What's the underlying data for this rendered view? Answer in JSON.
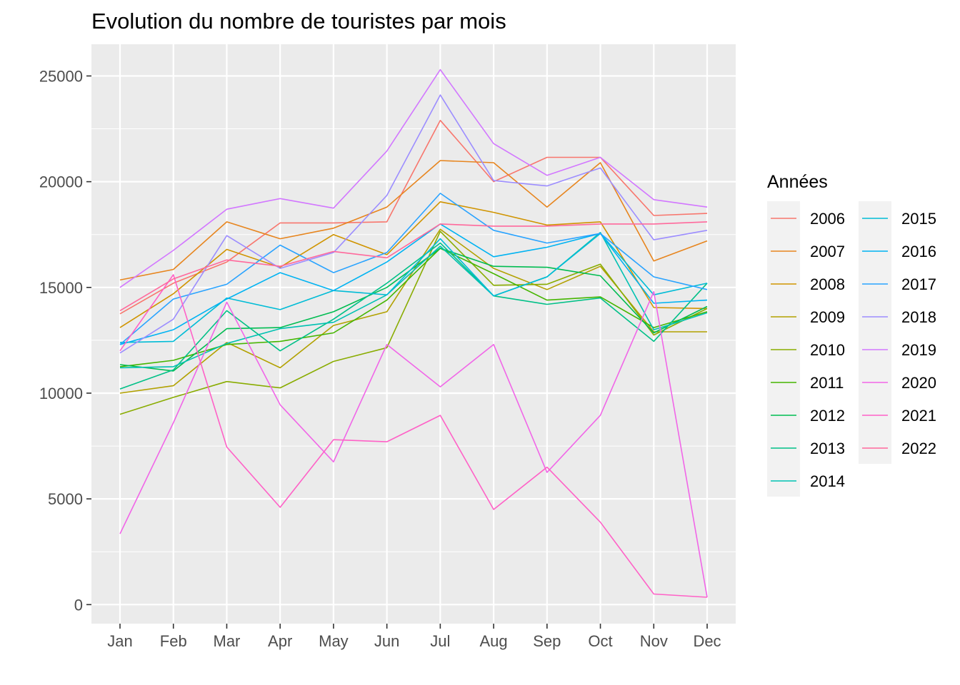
{
  "chart_data": {
    "type": "line",
    "title": "Evolution du nombre de touristes par mois",
    "xlabel": "",
    "ylabel": "",
    "categories": [
      "Jan",
      "Feb",
      "Mar",
      "Apr",
      "May",
      "Jun",
      "Jul",
      "Aug",
      "Sep",
      "Oct",
      "Nov",
      "Dec"
    ],
    "yticks": [
      "0",
      "5000",
      "10000",
      "15000",
      "20000",
      "25000"
    ],
    "ylim": [
      -900,
      26500
    ],
    "grid": true,
    "legend": {
      "title": "Années",
      "position": "right",
      "columns": 2
    },
    "series": [
      {
        "name": "2006",
        "color": "#F8766D",
        "values": [
          13750,
          15200,
          16200,
          18050,
          18050,
          18100,
          22900,
          20000,
          21150,
          21150,
          18400,
          18500
        ]
      },
      {
        "name": "2007",
        "color": "#E7851E",
        "values": [
          15350,
          15850,
          18100,
          17300,
          17800,
          18800,
          21000,
          20900,
          18800,
          20900,
          16250,
          17200
        ]
      },
      {
        "name": "2008",
        "color": "#D09400",
        "values": [
          13100,
          14700,
          16800,
          15950,
          17500,
          16550,
          19050,
          18550,
          17950,
          18100,
          14050,
          14000
        ]
      },
      {
        "name": "2009",
        "color": "#B2A100",
        "values": [
          10000,
          10350,
          12400,
          11200,
          13200,
          13850,
          17750,
          15900,
          14900,
          16000,
          12900,
          12900
        ]
      },
      {
        "name": "2010",
        "color": "#89AC00",
        "values": [
          9000,
          9800,
          10550,
          10250,
          11500,
          12150,
          17650,
          15100,
          15150,
          16100,
          12750,
          14000
        ]
      },
      {
        "name": "2011",
        "color": "#45B500",
        "values": [
          11250,
          11550,
          12300,
          12450,
          12850,
          14400,
          16850,
          15650,
          14400,
          14550,
          13100,
          13850
        ]
      },
      {
        "name": "2012",
        "color": "#00BC51",
        "values": [
          11350,
          11050,
          13050,
          13100,
          13850,
          15000,
          16850,
          16000,
          15950,
          15550,
          12850,
          14100
        ]
      },
      {
        "name": "2013",
        "color": "#00C087",
        "values": [
          10200,
          11100,
          13900,
          12000,
          13500,
          15200,
          17100,
          14600,
          14200,
          14500,
          12450,
          15200
        ]
      },
      {
        "name": "2014",
        "color": "#00C1B2",
        "values": [
          11200,
          11250,
          12350,
          13050,
          13350,
          14650,
          16950,
          14600,
          15500,
          17600,
          13000,
          13800
        ]
      },
      {
        "name": "2015",
        "color": "#00BCD6",
        "values": [
          12400,
          12450,
          14500,
          13950,
          14850,
          14650,
          17300,
          14600,
          15500,
          17550,
          14650,
          15200
        ]
      },
      {
        "name": "2016",
        "color": "#00B3F2",
        "values": [
          12300,
          13000,
          14450,
          15700,
          14850,
          16200,
          18000,
          16450,
          16900,
          17550,
          14250,
          14400
        ]
      },
      {
        "name": "2017",
        "color": "#29A3FF",
        "values": [
          12300,
          14450,
          15150,
          17000,
          15700,
          16650,
          19450,
          17700,
          17100,
          17550,
          15500,
          14900
        ]
      },
      {
        "name": "2018",
        "color": "#9C8DFF",
        "values": [
          11900,
          13500,
          17450,
          15900,
          16650,
          19350,
          24100,
          20050,
          19800,
          20650,
          17250,
          17700
        ]
      },
      {
        "name": "2019",
        "color": "#D277FF",
        "values": [
          15000,
          16750,
          18700,
          19200,
          18750,
          21450,
          25300,
          21800,
          20300,
          21150,
          19150,
          18800
        ]
      },
      {
        "name": "2020",
        "color": "#F166E8",
        "values": [
          3350,
          8600,
          14300,
          9450,
          6750,
          12300,
          10300,
          12300,
          6250,
          8950,
          14800,
          350
        ]
      },
      {
        "name": "2021",
        "color": "#FF61C7",
        "values": [
          12000,
          15600,
          7450,
          4600,
          7800,
          7700,
          8950,
          4500,
          6500,
          3900,
          500,
          350
        ]
      },
      {
        "name": "2022",
        "color": "#FF699C",
        "values": [
          13900,
          15400,
          16300,
          16000,
          16700,
          16400,
          18000,
          17900,
          17900,
          18000,
          18000,
          18100
        ]
      }
    ]
  }
}
